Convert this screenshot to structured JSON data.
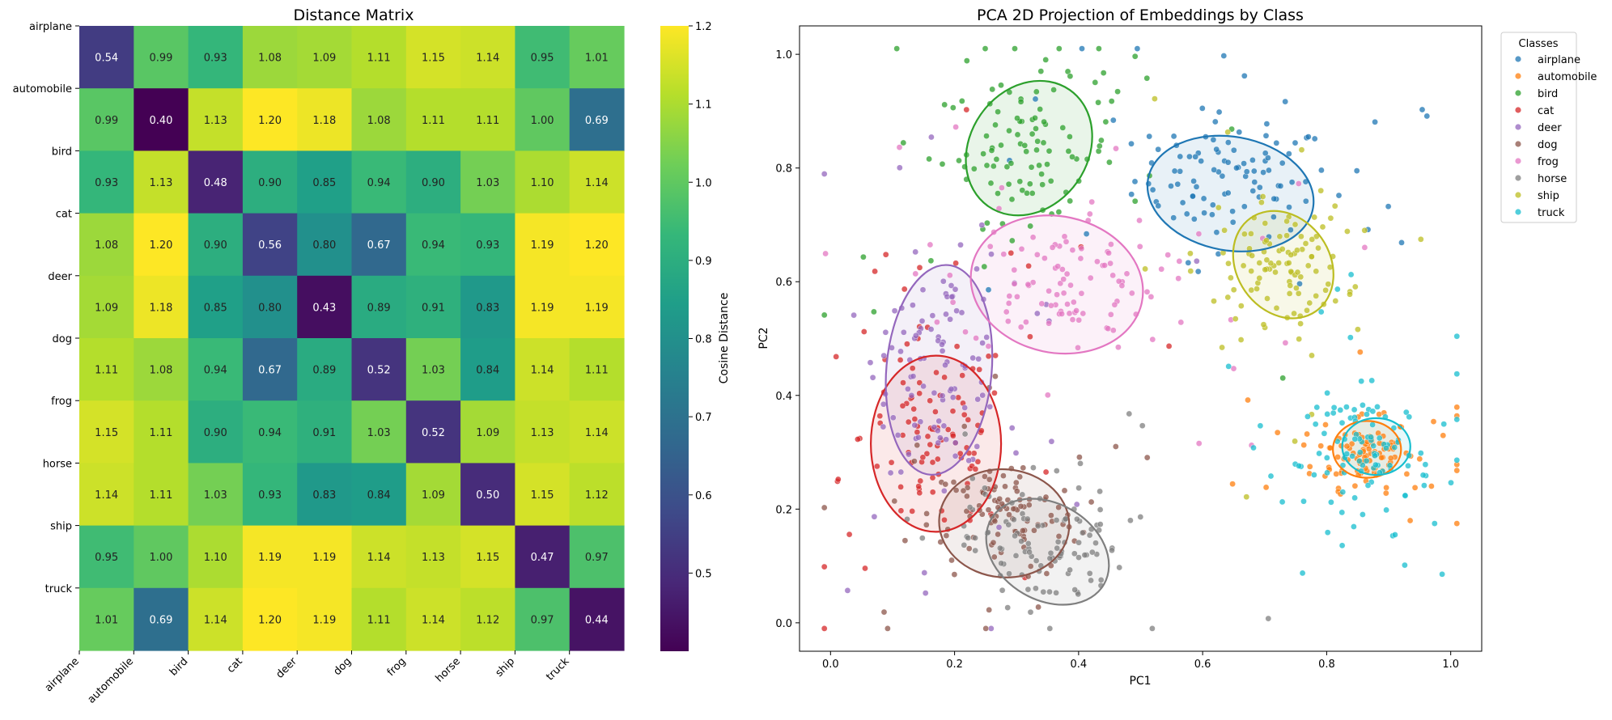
{
  "chart_data": [
    {
      "type": "heatmap",
      "title": "Distance Matrix",
      "row_labels": [
        "airplane",
        "automobile",
        "bird",
        "cat",
        "deer",
        "dog",
        "frog",
        "horse",
        "ship",
        "truck"
      ],
      "col_labels": [
        "airplane",
        "automobile",
        "bird",
        "cat",
        "deer",
        "dog",
        "frog",
        "horse",
        "ship",
        "truck"
      ],
      "values": [
        [
          0.54,
          0.99,
          0.93,
          1.08,
          1.09,
          1.11,
          1.15,
          1.14,
          0.95,
          1.01
        ],
        [
          0.99,
          0.4,
          1.13,
          1.2,
          1.18,
          1.08,
          1.11,
          1.11,
          1.0,
          0.69
        ],
        [
          0.93,
          1.13,
          0.48,
          0.9,
          0.85,
          0.94,
          0.9,
          1.03,
          1.1,
          1.14
        ],
        [
          1.08,
          1.2,
          0.9,
          0.56,
          0.8,
          0.67,
          0.94,
          0.93,
          1.19,
          1.2
        ],
        [
          1.09,
          1.18,
          0.85,
          0.8,
          0.43,
          0.89,
          0.91,
          0.83,
          1.19,
          1.19
        ],
        [
          1.11,
          1.08,
          0.94,
          0.67,
          0.89,
          0.52,
          1.03,
          0.84,
          1.14,
          1.11
        ],
        [
          1.15,
          1.11,
          0.9,
          0.94,
          0.91,
          1.03,
          0.52,
          1.09,
          1.13,
          1.14
        ],
        [
          1.14,
          1.11,
          1.03,
          0.93,
          0.83,
          0.84,
          1.09,
          0.5,
          1.15,
          1.12
        ],
        [
          0.95,
          1.0,
          1.1,
          1.19,
          1.19,
          1.14,
          1.13,
          1.15,
          0.47,
          0.97
        ],
        [
          1.01,
          0.69,
          1.14,
          1.2,
          1.19,
          1.11,
          1.14,
          1.12,
          0.97,
          0.44
        ]
      ],
      "colormap": "viridis",
      "colorbar": {
        "label": "Cosine Distance",
        "range": [
          0.4,
          1.2
        ],
        "ticks": [
          0.5,
          0.6,
          0.7,
          0.8,
          0.9,
          1.0,
          1.1,
          1.2
        ]
      }
    },
    {
      "type": "scatter",
      "title": "PCA 2D Projection of Embeddings by Class",
      "xlabel": "PC1",
      "ylabel": "PC2",
      "xlim": [
        -0.05,
        1.05
      ],
      "ylim": [
        -0.05,
        1.05
      ],
      "xticks": [
        0.0,
        0.2,
        0.4,
        0.6,
        0.8,
        1.0
      ],
      "yticks": [
        0.0,
        0.2,
        0.4,
        0.6,
        0.8,
        1.0
      ],
      "legend_title": "Classes",
      "legend_position": "outside-top-right",
      "series": [
        {
          "name": "airplane",
          "color": "#1f77b4",
          "center": [
            0.65,
            0.78
          ],
          "spread": [
            0.08,
            0.05
          ],
          "ellipse": {
            "center": [
              0.645,
              0.755
            ],
            "width": 0.27,
            "height": 0.2,
            "angle": -10
          }
        },
        {
          "name": "automobile",
          "color": "#ff7f0e",
          "center": [
            0.86,
            0.3
          ],
          "spread": [
            0.04,
            0.03
          ],
          "ellipse": {
            "center": [
              0.865,
              0.305
            ],
            "width": 0.11,
            "height": 0.1,
            "angle": 0
          }
        },
        {
          "name": "bird",
          "color": "#2ca02c",
          "center": [
            0.32,
            0.83
          ],
          "spread": [
            0.07,
            0.06
          ],
          "ellipse": {
            "center": [
              0.32,
              0.835
            ],
            "width": 0.19,
            "height": 0.25,
            "angle": -35
          }
        },
        {
          "name": "cat",
          "color": "#d62728",
          "center": [
            0.17,
            0.33
          ],
          "spread": [
            0.06,
            0.09
          ],
          "ellipse": {
            "center": [
              0.17,
              0.315
            ],
            "width": 0.21,
            "height": 0.31,
            "angle": 0
          }
        },
        {
          "name": "deer",
          "color": "#9467bd",
          "center": [
            0.18,
            0.45
          ],
          "spread": [
            0.05,
            0.09
          ],
          "ellipse": {
            "center": [
              0.175,
              0.445
            ],
            "width": 0.17,
            "height": 0.37,
            "angle": -5
          }
        },
        {
          "name": "dog",
          "color": "#8c564b",
          "center": [
            0.28,
            0.19
          ],
          "spread": [
            0.06,
            0.05
          ],
          "ellipse": {
            "center": [
              0.28,
              0.175
            ],
            "width": 0.21,
            "height": 0.19,
            "angle": -5
          }
        },
        {
          "name": "frog",
          "color": "#e377c2",
          "center": [
            0.37,
            0.6
          ],
          "spread": [
            0.08,
            0.06
          ],
          "ellipse": {
            "center": [
              0.365,
              0.595
            ],
            "width": 0.28,
            "height": 0.24,
            "angle": -12
          }
        },
        {
          "name": "horse",
          "color": "#7f7f7f",
          "center": [
            0.35,
            0.13
          ],
          "spread": [
            0.06,
            0.05
          ],
          "ellipse": {
            "center": [
              0.35,
              0.125
            ],
            "width": 0.21,
            "height": 0.17,
            "angle": -30
          }
        },
        {
          "name": "ship",
          "color": "#bcbd22",
          "center": [
            0.73,
            0.63
          ],
          "spread": [
            0.05,
            0.05
          ],
          "ellipse": {
            "center": [
              0.73,
              0.63
            ],
            "width": 0.15,
            "height": 0.2,
            "angle": 35
          }
        },
        {
          "name": "truck",
          "color": "#17becf",
          "center": [
            0.87,
            0.3
          ],
          "spread": [
            0.05,
            0.05
          ],
          "ellipse": {
            "center": [
              0.88,
              0.31
            ],
            "width": 0.11,
            "height": 0.1,
            "angle": 0
          }
        }
      ]
    }
  ]
}
